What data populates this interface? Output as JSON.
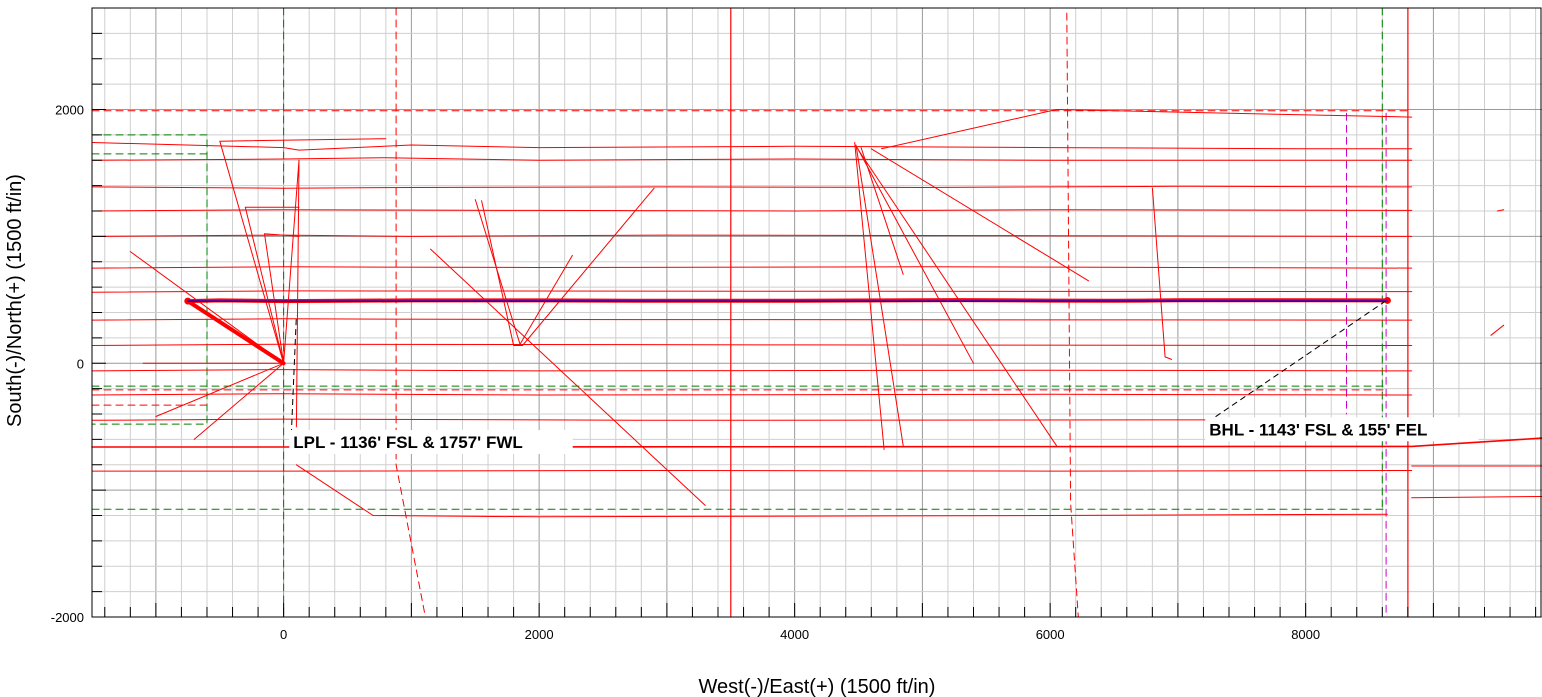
{
  "chart_data": {
    "type": "line",
    "title": "",
    "xlabel": "West(-)/East(+) (1500 ft/in)",
    "ylabel": "South(-)/North(+) (1500 ft/in)",
    "xlim": [
      -1500,
      9850
    ],
    "ylim": [
      -2000,
      2800
    ],
    "x_ticks": [
      0,
      2000,
      4000,
      6000,
      8000
    ],
    "y_ticks": [
      -2000,
      0,
      2000
    ],
    "grid": true,
    "colors": {
      "offset_wells": "#ff0000",
      "plan": "#0000ff",
      "section_lines": "#008000",
      "lease_lines": "#ff0000",
      "setback": "#cc00cc",
      "annotation_leader": "#000000"
    },
    "annotations": [
      {
        "text": "LPL - 1136' FSL & 1757' FWL",
        "x": 60,
        "y": -660,
        "leader_to": [
          100,
          380
        ]
      },
      {
        "text": "BHL - 1143' FSL & 155' FEL",
        "x": 7230,
        "y": -560,
        "leader_to": [
          8640,
          500
        ]
      }
    ],
    "series": [
      {
        "role": "subject-well-actual",
        "color": "#ff0000",
        "width": 4,
        "points": [
          [
            0,
            0
          ],
          [
            -750,
            490
          ],
          [
            -500,
            495
          ],
          [
            0,
            490
          ],
          [
            1000,
            495
          ],
          [
            2000,
            495
          ],
          [
            3000,
            492
          ],
          [
            4000,
            492
          ],
          [
            5000,
            496
          ],
          [
            5300,
            498
          ],
          [
            6000,
            494
          ],
          [
            6500,
            492
          ],
          [
            7000,
            496
          ],
          [
            8000,
            496
          ],
          [
            8640,
            495
          ]
        ]
      },
      {
        "role": "subject-well-plan",
        "color": "#0000ff",
        "width": 1.5,
        "points": [
          [
            -750,
            490
          ],
          [
            0,
            488
          ],
          [
            2000,
            490
          ],
          [
            4000,
            488
          ],
          [
            6000,
            490
          ],
          [
            8640,
            490
          ]
        ]
      },
      {
        "role": "vertical-lease-line",
        "color": "#ff0000",
        "width": 1.2,
        "dash": false,
        "points": [
          [
            3500,
            -2000
          ],
          [
            3500,
            2800
          ]
        ]
      },
      {
        "role": "vertical-lease-line",
        "color": "#ff0000",
        "width": 1.2,
        "dash": false,
        "points": [
          [
            8800,
            -2000
          ],
          [
            8800,
            2800
          ]
        ]
      },
      {
        "role": "vertical-lease-line",
        "color": "#ff0000",
        "width": 1,
        "dash": true,
        "points": [
          [
            880,
            2800
          ],
          [
            880,
            -800
          ],
          [
            1110,
            -2000
          ]
        ]
      },
      {
        "role": "vertical-lease-line",
        "color": "#ff0000",
        "width": 1,
        "dash": true,
        "points": [
          [
            6130,
            2760
          ],
          [
            6160,
            -1100
          ],
          [
            6220,
            -2000
          ]
        ]
      },
      {
        "role": "section-line",
        "color": "#008000",
        "width": 1,
        "dash": true,
        "points": [
          [
            0,
            2800
          ],
          [
            0,
            -2000
          ]
        ]
      },
      {
        "role": "section-line",
        "color": "#008000",
        "width": 1,
        "dash": true,
        "points": [
          [
            8600,
            2800
          ],
          [
            8600,
            -1150
          ]
        ]
      },
      {
        "role": "section-line",
        "color": "#008000",
        "width": 1,
        "dash": true,
        "points": [
          [
            -1500,
            -180
          ],
          [
            8640,
            -180
          ]
        ]
      },
      {
        "role": "section-line",
        "color": "#008000",
        "width": 1,
        "dash": true,
        "points": [
          [
            -1500,
            -1150
          ],
          [
            8640,
            -1150
          ]
        ]
      },
      {
        "role": "section-line",
        "color": "#008000",
        "width": 1,
        "dash": true,
        "points": [
          [
            -1500,
            1800
          ],
          [
            -600,
            1800
          ],
          [
            -600,
            -480
          ],
          [
            -1500,
            -480
          ]
        ]
      },
      {
        "role": "section-line",
        "color": "#008000",
        "width": 1,
        "dash": true,
        "points": [
          [
            -1500,
            1650
          ],
          [
            -600,
            1650
          ]
        ]
      },
      {
        "role": "lease-line",
        "color": "#ff0000",
        "width": 1,
        "dash": true,
        "points": [
          [
            -1500,
            1990
          ],
          [
            8830,
            1990
          ]
        ]
      },
      {
        "role": "lease-line",
        "color": "#ff0000",
        "width": 1,
        "dash": true,
        "points": [
          [
            -1500,
            -210
          ],
          [
            8640,
            -210
          ]
        ]
      },
      {
        "role": "lease-line",
        "color": "#ff0000",
        "width": 1,
        "dash": true,
        "points": [
          [
            -1500,
            -330
          ],
          [
            -600,
            -330
          ]
        ]
      },
      {
        "role": "setback-line",
        "color": "#cc00cc",
        "width": 1,
        "dash": true,
        "points": [
          [
            8320,
            1970
          ],
          [
            8320,
            -400
          ]
        ]
      },
      {
        "role": "setback-line",
        "color": "#cc00cc",
        "width": 1,
        "dash": true,
        "points": [
          [
            8630,
            1970
          ],
          [
            8630,
            -2000
          ]
        ]
      },
      {
        "role": "offset-well",
        "color": "#ff0000",
        "width": 1,
        "points": [
          [
            -1500,
            1740
          ],
          [
            0,
            1700
          ],
          [
            120,
            1680
          ],
          [
            1000,
            1720
          ],
          [
            2000,
            1700
          ],
          [
            4000,
            1710
          ],
          [
            6000,
            1700
          ],
          [
            8000,
            1690
          ],
          [
            8830,
            1690
          ]
        ]
      },
      {
        "role": "offset-well",
        "color": "#ff0000",
        "width": 1,
        "points": [
          [
            -1500,
            1600
          ],
          [
            0,
            1610
          ],
          [
            800,
            1620
          ],
          [
            2000,
            1600
          ],
          [
            4000,
            1610
          ],
          [
            6000,
            1600
          ],
          [
            8830,
            1600
          ]
        ]
      },
      {
        "role": "offset-well",
        "color": "#ff0000",
        "width": 1,
        "points": [
          [
            -1500,
            1390
          ],
          [
            0,
            1380
          ],
          [
            1000,
            1385
          ],
          [
            3000,
            1390
          ],
          [
            5000,
            1385
          ],
          [
            7000,
            1395
          ],
          [
            8830,
            1390
          ]
        ]
      },
      {
        "role": "offset-well",
        "color": "#ff0000",
        "width": 1,
        "points": [
          [
            -1500,
            1200
          ],
          [
            0,
            1210
          ],
          [
            2000,
            1205
          ],
          [
            4000,
            1200
          ],
          [
            6000,
            1210
          ],
          [
            8830,
            1205
          ]
        ]
      },
      {
        "role": "offset-well",
        "color": "#ff0000",
        "width": 1,
        "points": [
          [
            -1500,
            1000
          ],
          [
            0,
            1010
          ],
          [
            1000,
            1000
          ],
          [
            3000,
            1010
          ],
          [
            6000,
            1005
          ],
          [
            8830,
            1000
          ]
        ]
      },
      {
        "role": "offset-well",
        "color": "#ff0000",
        "width": 1,
        "points": [
          [
            -1500,
            750
          ],
          [
            0,
            760
          ],
          [
            2000,
            755
          ],
          [
            5000,
            760
          ],
          [
            8830,
            750
          ]
        ]
      },
      {
        "role": "offset-well",
        "color": "#ff0000",
        "width": 1,
        "points": [
          [
            -1500,
            560
          ],
          [
            0,
            570
          ],
          [
            8830,
            565
          ]
        ]
      },
      {
        "role": "offset-well",
        "color": "#ff0000",
        "width": 1,
        "points": [
          [
            -1500,
            340
          ],
          [
            0,
            350
          ],
          [
            2000,
            345
          ],
          [
            8830,
            340
          ]
        ]
      },
      {
        "role": "offset-well",
        "color": "#ff0000",
        "width": 1,
        "points": [
          [
            -1500,
            140
          ],
          [
            0,
            150
          ],
          [
            4000,
            145
          ],
          [
            8830,
            140
          ]
        ]
      },
      {
        "role": "offset-well",
        "color": "#ff0000",
        "width": 1,
        "points": [
          [
            -1500,
            -60
          ],
          [
            0,
            -50
          ],
          [
            2000,
            -60
          ],
          [
            6000,
            -55
          ],
          [
            8830,
            -60
          ]
        ]
      },
      {
        "role": "offset-well",
        "color": "#ff0000",
        "width": 1,
        "points": [
          [
            -1500,
            -250
          ],
          [
            0,
            -240
          ],
          [
            2000,
            -250
          ],
          [
            6000,
            -245
          ],
          [
            8830,
            -250
          ]
        ]
      },
      {
        "role": "offset-well",
        "color": "#ff0000",
        "width": 1,
        "points": [
          [
            -1500,
            -450
          ],
          [
            0,
            -440
          ],
          [
            3000,
            -450
          ],
          [
            8830,
            -445
          ]
        ]
      },
      {
        "role": "offset-well",
        "color": "#ff0000",
        "width": 1.6,
        "points": [
          [
            -1500,
            -660
          ],
          [
            200,
            -660
          ],
          [
            8830,
            -655
          ],
          [
            9850,
            -590
          ]
        ]
      },
      {
        "role": "offset-well",
        "color": "#ff0000",
        "width": 1,
        "points": [
          [
            -1500,
            -850
          ],
          [
            0,
            -850
          ],
          [
            3000,
            -845
          ],
          [
            6000,
            -850
          ],
          [
            8830,
            -845
          ]
        ]
      },
      {
        "role": "offset-well",
        "color": "#ff0000",
        "width": 1,
        "points": [
          [
            100,
            -800
          ],
          [
            700,
            -1200
          ],
          [
            2000,
            -1210
          ],
          [
            6000,
            -1200
          ],
          [
            8640,
            -1190
          ]
        ]
      },
      {
        "role": "offset-well",
        "color": "#ff0000",
        "width": 1,
        "points": [
          [
            1150,
            900
          ],
          [
            3300,
            -1120
          ]
        ]
      },
      {
        "role": "offset-well",
        "color": "#ff0000",
        "width": 1,
        "points": [
          [
            1550,
            1280
          ],
          [
            1800,
            140
          ],
          [
            1870,
            140
          ],
          [
            2900,
            1380
          ]
        ]
      },
      {
        "role": "offset-well",
        "color": "#ff0000",
        "width": 1,
        "points": [
          [
            1500,
            1290
          ],
          [
            1850,
            150
          ],
          [
            2260,
            850
          ]
        ]
      },
      {
        "role": "offset-well",
        "color": "#ff0000",
        "width": 1,
        "points": [
          [
            4480,
            1720
          ],
          [
            4850,
            -650
          ]
        ]
      },
      {
        "role": "offset-well",
        "color": "#ff0000",
        "width": 1,
        "points": [
          [
            4470,
            1740
          ],
          [
            4700,
            -680
          ]
        ]
      },
      {
        "role": "offset-well",
        "color": "#ff0000",
        "width": 1,
        "points": [
          [
            4490,
            1700
          ],
          [
            5400,
            0
          ]
        ]
      },
      {
        "role": "offset-well",
        "color": "#ff0000",
        "width": 1,
        "points": [
          [
            4500,
            1680
          ],
          [
            6050,
            -650
          ]
        ]
      },
      {
        "role": "offset-well",
        "color": "#ff0000",
        "width": 1,
        "points": [
          [
            4520,
            1700
          ],
          [
            4850,
            700
          ]
        ]
      },
      {
        "role": "offset-well",
        "color": "#ff0000",
        "width": 1,
        "points": [
          [
            4600,
            1690
          ],
          [
            6300,
            650
          ]
        ]
      },
      {
        "role": "offset-well",
        "color": "#ff0000",
        "width": 1,
        "points": [
          [
            4680,
            1690
          ],
          [
            6050,
            2000
          ],
          [
            8830,
            1940
          ]
        ]
      },
      {
        "role": "offset-well",
        "color": "#ff0000",
        "width": 1,
        "points": [
          [
            6800,
            1380
          ],
          [
            6900,
            50
          ],
          [
            6950,
            30
          ]
        ]
      },
      {
        "role": "offset-well",
        "color": "#ff0000",
        "width": 1,
        "points": [
          [
            0,
            0
          ],
          [
            -1100,
            0
          ]
        ]
      },
      {
        "role": "offset-well",
        "color": "#ff0000",
        "width": 1,
        "points": [
          [
            0,
            0
          ],
          [
            -1000,
            -420
          ]
        ]
      },
      {
        "role": "offset-well",
        "color": "#ff0000",
        "width": 1,
        "points": [
          [
            0,
            0
          ],
          [
            -700,
            -600
          ]
        ]
      },
      {
        "role": "offset-well",
        "color": "#ff0000",
        "width": 1,
        "points": [
          [
            0,
            0
          ],
          [
            -500,
            1750
          ],
          [
            800,
            1770
          ]
        ]
      },
      {
        "role": "offset-well",
        "color": "#ff0000",
        "width": 1,
        "points": [
          [
            0,
            0
          ],
          [
            -300,
            1230
          ],
          [
            120,
            1230
          ]
        ]
      },
      {
        "role": "offset-well",
        "color": "#ff0000",
        "width": 1,
        "points": [
          [
            0,
            0
          ],
          [
            -150,
            1020
          ],
          [
            120,
            1000
          ]
        ]
      },
      {
        "role": "offset-well",
        "color": "#ff0000",
        "width": 1,
        "points": [
          [
            0,
            0
          ],
          [
            120,
            1600
          ],
          [
            100,
            -500
          ]
        ]
      },
      {
        "role": "offset-well",
        "color": "#ff0000",
        "width": 1,
        "points": [
          [
            0,
            0
          ],
          [
            -1200,
            880
          ]
        ]
      },
      {
        "role": "offset-well",
        "color": "#ff0000",
        "width": 1,
        "points": [
          [
            9500,
            1200
          ],
          [
            9550,
            1210
          ]
        ]
      },
      {
        "role": "offset-well",
        "color": "#ff0000",
        "width": 1,
        "points": [
          [
            9450,
            220
          ],
          [
            9550,
            300
          ]
        ]
      },
      {
        "role": "offset-well",
        "color": "#ff0000",
        "width": 1,
        "points": [
          [
            8830,
            -810
          ],
          [
            9850,
            -810
          ]
        ]
      },
      {
        "role": "offset-well",
        "color": "#ff0000",
        "width": 1,
        "points": [
          [
            8830,
            -1060
          ],
          [
            9850,
            -1050
          ]
        ]
      }
    ]
  }
}
